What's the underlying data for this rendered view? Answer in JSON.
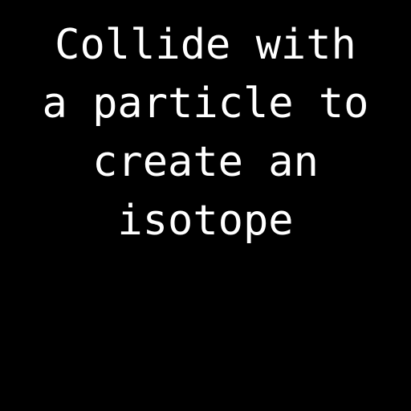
{
  "instruction": {
    "lines": [
      "Collide with",
      "a particle to",
      "create an",
      "isotope"
    ]
  },
  "colors": {
    "background": "#000000",
    "text": "#ffffff"
  }
}
